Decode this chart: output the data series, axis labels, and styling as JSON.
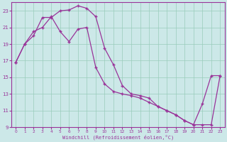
{
  "xlabel": "Windchill (Refroidissement éolien,°C)",
  "background_color": "#cce8e8",
  "line_color": "#993399",
  "grid_color": "#99ccbb",
  "xlim": [
    -0.5,
    23.5
  ],
  "ylim": [
    9,
    24
  ],
  "xticks": [
    0,
    1,
    2,
    3,
    4,
    5,
    6,
    7,
    8,
    9,
    10,
    11,
    12,
    13,
    14,
    15,
    16,
    17,
    18,
    19,
    20,
    21,
    22,
    23
  ],
  "yticks": [
    9,
    11,
    13,
    15,
    17,
    19,
    21,
    23
  ],
  "line1_x": [
    0,
    1,
    2,
    3,
    4,
    5,
    6,
    7,
    8,
    9,
    10,
    11,
    12,
    13,
    14,
    15,
    16,
    17,
    18,
    19,
    20,
    21,
    22,
    23
  ],
  "line1_y": [
    16.8,
    19.0,
    20.0,
    22.2,
    22.2,
    23.0,
    23.1,
    23.6,
    23.3,
    22.3,
    18.5,
    16.5,
    14.0,
    13.0,
    12.8,
    12.5,
    11.5,
    11.0,
    10.5,
    9.8,
    9.3,
    9.3,
    9.3,
    15.2
  ],
  "line2_x": [
    0,
    1,
    2,
    3,
    4,
    5,
    6,
    7,
    8,
    9,
    10,
    11,
    12,
    13,
    14,
    15,
    16,
    17,
    18,
    19,
    20,
    21,
    22,
    23
  ],
  "line2_y": [
    16.8,
    19.0,
    20.5,
    21.0,
    22.3,
    20.5,
    19.3,
    20.8,
    21.0,
    16.2,
    14.2,
    13.3,
    13.0,
    12.8,
    12.5,
    12.0,
    11.5,
    11.0,
    10.5,
    9.8,
    9.3,
    11.8,
    15.2,
    15.2
  ]
}
